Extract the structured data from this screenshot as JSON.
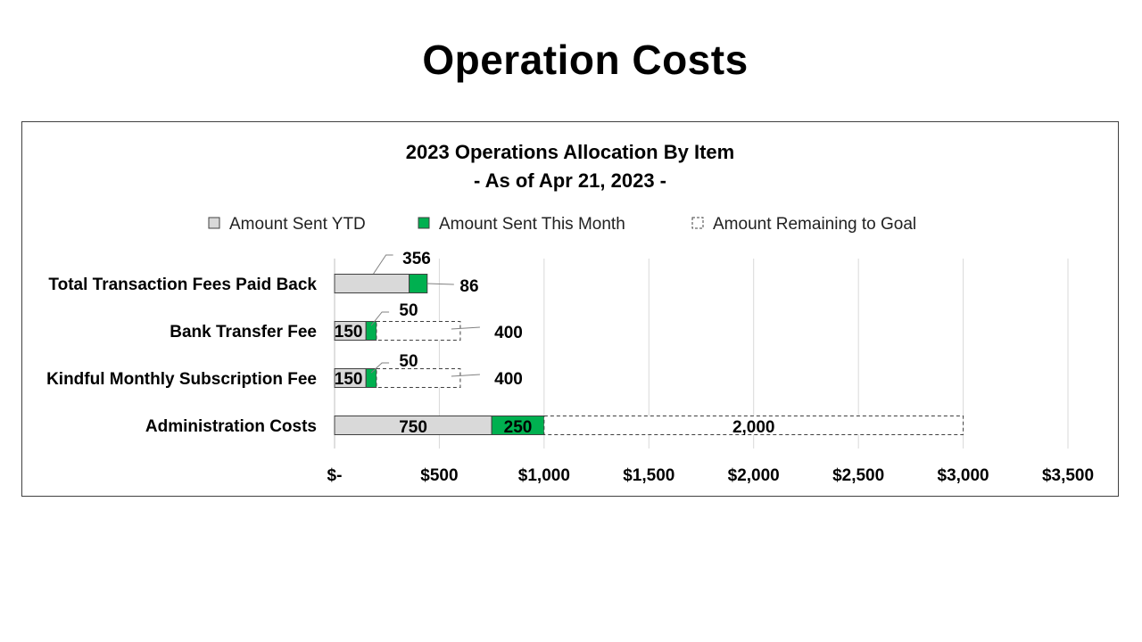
{
  "slide": {
    "title": "Operation Costs"
  },
  "chart_data": {
    "type": "bar",
    "orientation": "horizontal",
    "stacked": true,
    "title": "2023 Operations Allocation By Item",
    "subtitle": "- As of Apr 21, 2023 -",
    "legend_position": "top",
    "grid": true,
    "categories": [
      "Total Transaction Fees Paid Back",
      "Bank Transfer Fee",
      "Kindful Monthly Subscription Fee",
      "Administration Costs"
    ],
    "series": [
      {
        "name": "Amount Sent YTD",
        "color": "#d9d9d9",
        "style": "solid",
        "values": [
          356,
          150,
          150,
          750
        ]
      },
      {
        "name": "Amount Sent This Month",
        "color": "#00b050",
        "style": "solid",
        "values": [
          86,
          50,
          50,
          250
        ]
      },
      {
        "name": "Amount Remaining to Goal",
        "color": "#ffffff",
        "style": "dashed",
        "values": [
          null,
          400,
          400,
          2000
        ]
      }
    ],
    "data_labels": [
      [
        "356",
        "150",
        "150",
        "750"
      ],
      [
        "86",
        "50",
        "50",
        "250"
      ],
      [
        "",
        "400",
        "400",
        "2,000"
      ]
    ],
    "x_ticks": [
      0,
      500,
      1000,
      1500,
      2000,
      2500,
      3000,
      3500
    ],
    "x_tick_labels": [
      "$-",
      "$500",
      "$1,000",
      "$1,500",
      "$2,000",
      "$2,500",
      "$3,000",
      "$3,500"
    ],
    "xlim": [
      0,
      3500
    ]
  }
}
